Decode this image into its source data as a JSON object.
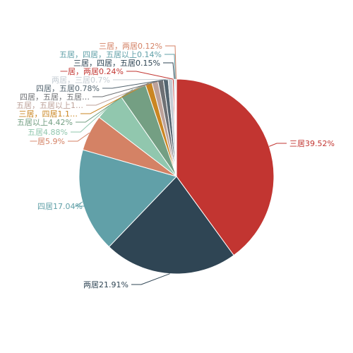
{
  "chart_data": {
    "type": "pie",
    "slices": [
      {
        "label": "三居39.52%",
        "name": "三居",
        "value": 39.52,
        "color": "#c23531",
        "label_color": "#c23531"
      },
      {
        "label": "两居21.91%",
        "name": "两居",
        "value": 21.91,
        "color": "#2f4554",
        "label_color": "#2f4554"
      },
      {
        "label": "四居17.04%",
        "name": "四居",
        "value": 17.04,
        "color": "#61a0a8",
        "label_color": "#61a0a8"
      },
      {
        "label": "一居5.9%",
        "name": "一居",
        "value": 5.9,
        "color": "#d48265",
        "label_color": "#d48265"
      },
      {
        "label": "五居4.88%",
        "name": "五居",
        "value": 4.88,
        "color": "#91c7ae",
        "label_color": "#91c7ae"
      },
      {
        "label": "五居以上4.42%",
        "name": "五居以上",
        "value": 4.42,
        "color": "#749f83",
        "label_color": "#749f83"
      },
      {
        "label": "三居，四居1.1…",
        "name": "三居，四居",
        "value": 1.1,
        "color": "#ca8622",
        "label_color": "#ca8622"
      },
      {
        "label": "五居，五居以上1…",
        "name": "五居，五居以上",
        "value": 1.0,
        "color": "#bda29a",
        "label_color": "#bda29a"
      },
      {
        "label": "四居，五居，五居…",
        "name": "四居，五居，五居以上",
        "value": 0.9,
        "color": "#6e7074",
        "label_color": "#6e7074"
      },
      {
        "label": "四居，五居0.78%",
        "name": "四居，五居",
        "value": 0.78,
        "color": "#546570",
        "label_color": "#546570"
      },
      {
        "label": "两居，三居0.7%",
        "name": "两居，三居",
        "value": 0.7,
        "color": "#c4ccd3",
        "label_color": "#c4ccd3"
      },
      {
        "label": "一居，两居0.24%",
        "name": "一居，两居",
        "value": 0.24,
        "color": "#c23531",
        "label_color": "#c23531"
      },
      {
        "label": "三居，四居，五居0.15%",
        "name": "三居，四居，五居",
        "value": 0.15,
        "color": "#2f4554",
        "label_color": "#2f4554"
      },
      {
        "label": "五居，四居，五居以上0.14%",
        "name": "五居，四居，五居以上",
        "value": 0.14,
        "color": "#61a0a8",
        "label_color": "#61a0a8"
      },
      {
        "label": "三居，两居0.12%",
        "name": "三居，两居",
        "value": 0.12,
        "color": "#d48265",
        "label_color": "#d48265"
      }
    ]
  }
}
